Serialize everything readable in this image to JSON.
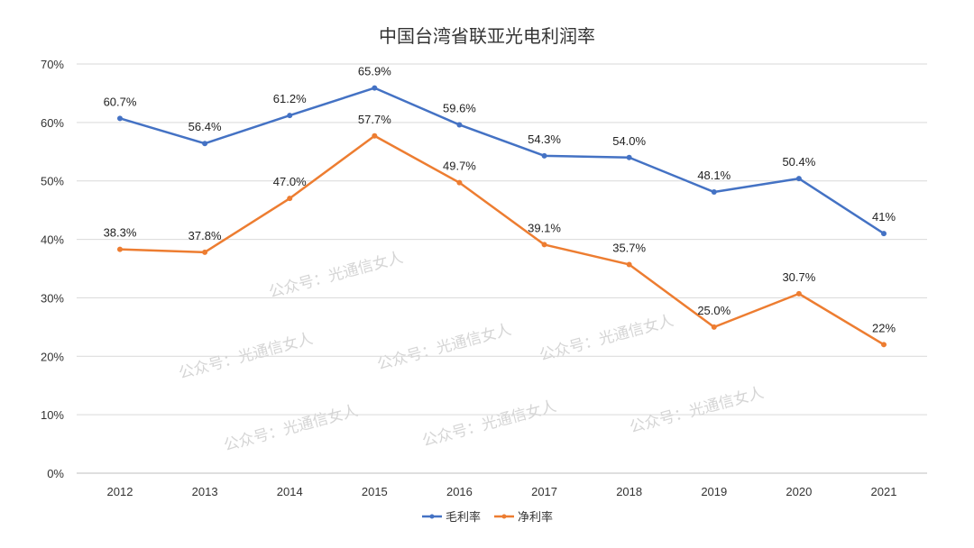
{
  "chart_data": {
    "type": "line",
    "title": "中国台湾省联亚光电利润率",
    "categories": [
      "2012",
      "2013",
      "2014",
      "2015",
      "2016",
      "2017",
      "2018",
      "2019",
      "2020",
      "2021"
    ],
    "series": [
      {
        "name": "毛利率",
        "color": "#4472C4",
        "values": [
          60.7,
          56.4,
          61.2,
          65.9,
          59.6,
          54.3,
          54.0,
          48.1,
          50.4,
          41
        ],
        "labels": [
          "60.7%",
          "56.4%",
          "61.2%",
          "65.9%",
          "59.6%",
          "54.3%",
          "54.0%",
          "48.1%",
          "50.4%",
          "41%"
        ]
      },
      {
        "name": "净利率",
        "color": "#ED7D31",
        "values": [
          38.3,
          37.8,
          47.0,
          57.7,
          49.7,
          39.1,
          35.7,
          25.0,
          30.7,
          22
        ],
        "labels": [
          "38.3%",
          "37.8%",
          "47.0%",
          "57.7%",
          "49.7%",
          "39.1%",
          "35.7%",
          "25.0%",
          "30.7%",
          "22%"
        ]
      }
    ],
    "ylim": [
      0,
      70
    ],
    "yticks": [
      "0%",
      "10%",
      "20%",
      "30%",
      "40%",
      "50%",
      "60%",
      "70%"
    ],
    "grid": true,
    "legend": "bottom",
    "xlabel": "",
    "ylabel": ""
  },
  "watermark": "公众号：光通信女人"
}
